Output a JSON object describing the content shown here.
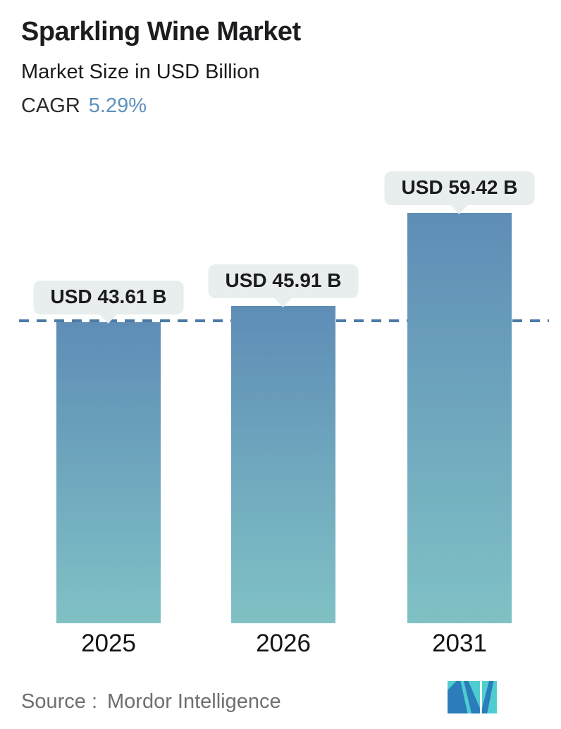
{
  "header": {
    "title": "Sparkling Wine Market",
    "subtitle": "Market Size in USD Billion",
    "cagr_label": "CAGR",
    "cagr_value": "5.29%"
  },
  "chart_data": {
    "type": "bar",
    "categories": [
      "2025",
      "2026",
      "2031"
    ],
    "values": [
      43.61,
      45.91,
      59.42
    ],
    "value_labels": [
      "USD 43.61 B",
      "USD 45.91 B",
      "USD 59.42 B"
    ],
    "title": "Sparkling Wine Market",
    "xlabel": "",
    "ylabel": "Market Size in USD Billion",
    "ylim": [
      0,
      62
    ],
    "grid": false,
    "legend": "none",
    "reference_line_value": 43.61,
    "annotations": [
      "dashed horizontal reference line at 2025 level"
    ]
  },
  "footer": {
    "source_label": "Source :",
    "source_value": "Mordor Intelligence"
  },
  "colors": {
    "title_text": "#1d1d1f",
    "cagr_value_blue": "#5e90bf",
    "bar_gradient_top": "#5e8db6",
    "bar_gradient_bottom": "#80c1c5",
    "reference_line": "#4a7ba6",
    "callout_bg": "#e8edee",
    "source_text": "#6d6f70",
    "logo_teal": "#4ecdd0",
    "logo_blue": "#2b7cba"
  }
}
